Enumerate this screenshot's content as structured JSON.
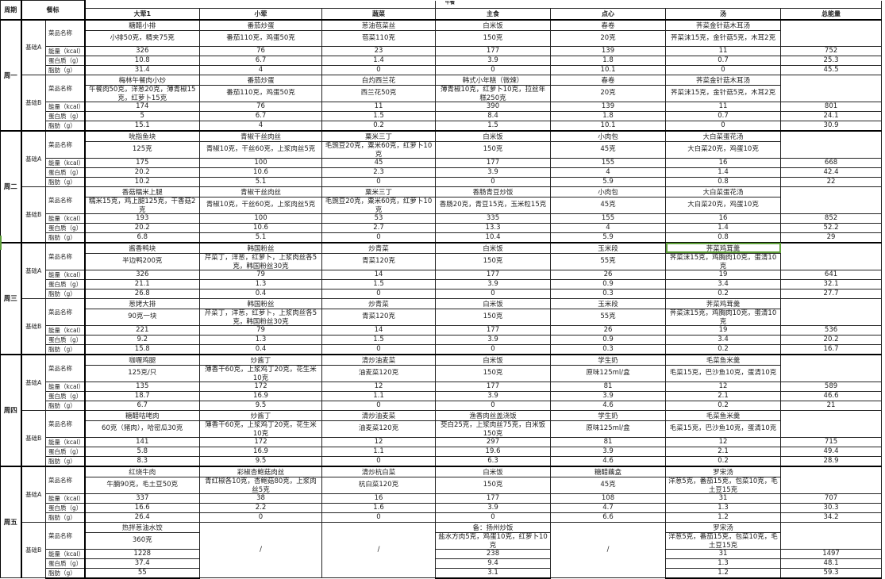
{
  "header": {
    "period": "周期",
    "standard": "餐标",
    "meal": "午餐",
    "columns": [
      "大荤1",
      "小荤",
      "蔬菜",
      "主食",
      "点心",
      "汤",
      "总能量"
    ]
  },
  "row_labels": {
    "name": "菜品名称",
    "kcal": "能量（kcal）",
    "protein": "蛋白质（g）",
    "fat": "脂肪（g）"
  },
  "selection_color": "#5fa03a",
  "selected_cell": "周三-基础A-汤-菜品名称",
  "weeks": [
    {
      "label": "周一",
      "plans": [
        {
          "label": "基础A",
          "dishes": [
            {
              "name": "糖醋小排",
              "detail": "小排50克，精夹75克",
              "kcal": "326",
              "protein": "10.8",
              "fat": "31.4"
            },
            {
              "name": "番茄炒蛋",
              "detail": "番茄110克，鸡蛋50克",
              "kcal": "76",
              "protein": "6.7",
              "fat": "4"
            },
            {
              "name": "葱油苞菜丝",
              "detail": "苞菜110克",
              "kcal": "23",
              "protein": "1.4",
              "fat": "0"
            },
            {
              "name": "白米饭",
              "detail": "150克",
              "kcal": "177",
              "protein": "3.9",
              "fat": "0"
            },
            {
              "name": "春卷",
              "detail": "20克",
              "kcal": "139",
              "protein": "1.8",
              "fat": "10.1"
            },
            {
              "name": "荠菜金针菇木耳汤",
              "detail": "荠菜沫15克，金针菇5克，木耳2克",
              "kcal": "11",
              "protein": "0.7",
              "fat": "0"
            }
          ],
          "total": {
            "kcal": "752",
            "protein": "25.3",
            "fat": "45.5"
          }
        },
        {
          "label": "基础B",
          "dishes": [
            {
              "name": "梅林午餐肉小炒",
              "detail": "午餐肉50克，洋葱20克，薄青椒15克，红萝卜15克",
              "kcal": "174",
              "protein": "5",
              "fat": "15.1"
            },
            {
              "name": "番茄炒蛋",
              "detail": "番茄110克，鸡蛋50克",
              "kcal": "76",
              "protein": "6.7",
              "fat": "4"
            },
            {
              "name": "白灼西兰花",
              "detail": "西兰花50克",
              "kcal": "11",
              "protein": "1.5",
              "fat": "0.2"
            },
            {
              "name": "韩式小年糕（微辣）",
              "detail": "薄青椒10克，红萝卜10克，拉丝年糕250克",
              "kcal": "390",
              "protein": "8.4",
              "fat": "1.5"
            },
            {
              "name": "春卷",
              "detail": "20克",
              "kcal": "139",
              "protein": "1.8",
              "fat": "10.1"
            },
            {
              "name": "荠菜金针菇木耳汤",
              "detail": "荠菜沫15克，金针菇5克，木耳2克",
              "kcal": "11",
              "protein": "0.7",
              "fat": "0"
            }
          ],
          "total": {
            "kcal": "801",
            "protein": "24.1",
            "fat": "30.9"
          }
        }
      ]
    },
    {
      "label": "周二",
      "plans": [
        {
          "label": "基础A",
          "dishes": [
            {
              "name": "吮指鱼块",
              "detail": "125克",
              "kcal": "175",
              "protein": "20.2",
              "fat": "10.2"
            },
            {
              "name": "青椒干丝肉丝",
              "detail": "青椒10克，干丝60克，上浆肉丝5克",
              "kcal": "100",
              "protein": "10.6",
              "fat": "5.1"
            },
            {
              "name": "粟米三丁",
              "detail": "毛豌豆20克，粟米60克，红萝卜10克",
              "kcal": "45",
              "protein": "2.3",
              "fat": "0"
            },
            {
              "name": "白米饭",
              "detail": "150克",
              "kcal": "177",
              "protein": "3.9",
              "fat": "0"
            },
            {
              "name": "小肉包",
              "detail": "45克",
              "kcal": "155",
              "protein": "4",
              "fat": "5.9"
            },
            {
              "name": "大白菜蛋花汤",
              "detail": "大白菜20克，鸡蛋10克",
              "kcal": "16",
              "protein": "1.4",
              "fat": "0.8"
            }
          ],
          "total": {
            "kcal": "668",
            "protein": "42.4",
            "fat": "22"
          }
        },
        {
          "label": "基础B",
          "dishes": [
            {
              "name": "香菇糯米上腿",
              "detail": "糯米15克，鸡上腿125克，干香菇2克",
              "kcal": "193",
              "protein": "20.2",
              "fat": "6.8"
            },
            {
              "name": "青椒干丝肉丝",
              "detail": "青椒10克，干丝60克，上浆肉丝5克",
              "kcal": "100",
              "protein": "10.6",
              "fat": "5.1"
            },
            {
              "name": "粟米三丁",
              "detail": "毛豌豆20克，粟米60克，红萝卜10克",
              "kcal": "53",
              "protein": "2.7",
              "fat": "0"
            },
            {
              "name": "香肠青豆炒饭",
              "detail": "香肠20克，青豆15克，玉米粒15克",
              "kcal": "335",
              "protein": "13.3",
              "fat": "10.4"
            },
            {
              "name": "小肉包",
              "detail": "45克",
              "kcal": "155",
              "protein": "4",
              "fat": "5.9"
            },
            {
              "name": "大白菜蛋花汤",
              "detail": "大白菜20克，鸡蛋10克",
              "kcal": "16",
              "protein": "1.4",
              "fat": "0.8"
            }
          ],
          "total": {
            "kcal": "852",
            "protein": "52.2",
            "fat": "29"
          }
        }
      ]
    },
    {
      "label": "周三",
      "plans": [
        {
          "label": "基础A",
          "dishes": [
            {
              "name": "酱香鸭块",
              "detail": "半边鸭200克",
              "kcal": "326",
              "protein": "21.1",
              "fat": "26.8"
            },
            {
              "name": "韩国粉丝",
              "detail": "芹菜丁，洋葱，红萝卜，上浆肉丝各5克，韩国粉丝30克",
              "kcal": "79",
              "protein": "1.3",
              "fat": "0.4"
            },
            {
              "name": "炒青菜",
              "detail": "青菜120克",
              "kcal": "14",
              "protein": "1.5",
              "fat": "0"
            },
            {
              "name": "白米饭",
              "detail": "150克",
              "kcal": "177",
              "protein": "3.9",
              "fat": "0"
            },
            {
              "name": "玉米段",
              "detail": "55克",
              "kcal": "26",
              "protein": "0.9",
              "fat": "0.3"
            },
            {
              "name": "荠菜鸡茸羹",
              "detail": "荠菜沫15克，鸡胸肉10克，蛋清10克",
              "kcal": "19",
              "protein": "3.4",
              "fat": "0.2"
            }
          ],
          "total": {
            "kcal": "641",
            "protein": "32.1",
            "fat": "27.7"
          }
        },
        {
          "label": "基础B",
          "dishes": [
            {
              "name": "葱烤大排",
              "detail": "90克一块",
              "kcal": "221",
              "protein": "9.2",
              "fat": "15.8"
            },
            {
              "name": "韩国粉丝",
              "detail": "芹菜丁，洋葱，红萝卜，上浆肉丝各5克，韩国粉丝30克",
              "kcal": "79",
              "protein": "1.3",
              "fat": "0.4"
            },
            {
              "name": "炒青菜",
              "detail": "青菜120克",
              "kcal": "14",
              "protein": "1.5",
              "fat": "0"
            },
            {
              "name": "白米饭",
              "detail": "150克",
              "kcal": "177",
              "protein": "3.9",
              "fat": "0"
            },
            {
              "name": "玉米段",
              "detail": "55克",
              "kcal": "26",
              "protein": "0.9",
              "fat": "0.3"
            },
            {
              "name": "荠菜鸡茸羹",
              "detail": "荠菜沫15克，鸡胸肉10克，蛋清10克",
              "kcal": "19",
              "protein": "3.4",
              "fat": "0.2"
            }
          ],
          "total": {
            "kcal": "536",
            "protein": "20.2",
            "fat": "16.7"
          }
        }
      ]
    },
    {
      "label": "周四",
      "plans": [
        {
          "label": "基础A",
          "dishes": [
            {
              "name": "咖喱鸡腿",
              "detail": "125克/只",
              "kcal": "135",
              "protein": "18.7",
              "fat": "6.7"
            },
            {
              "name": "炒酱丁",
              "detail": "薄香干60克，上浆鸡丁20克，花生米10克",
              "kcal": "172",
              "protein": "16.9",
              "fat": "9.5"
            },
            {
              "name": "清炒油麦菜",
              "detail": "油麦菜120克",
              "kcal": "12",
              "protein": "1.1",
              "fat": "0"
            },
            {
              "name": "白米饭",
              "detail": "150克",
              "kcal": "177",
              "protein": "3.9",
              "fat": "0"
            },
            {
              "name": "学生奶",
              "detail": "原味125ml/盒",
              "kcal": "81",
              "protein": "3.9",
              "fat": "4.6"
            },
            {
              "name": "毛菜鱼米羹",
              "detail": "毛菜15克，巴沙鱼10克，蛋清10克",
              "kcal": "12",
              "protein": "2.1",
              "fat": "0.2"
            }
          ],
          "total": {
            "kcal": "589",
            "protein": "46.6",
            "fat": "21"
          }
        },
        {
          "label": "基础B",
          "dishes": [
            {
              "name": "糖醋咕咾肉",
              "detail": "60克（猪肉），哈密瓜30克",
              "kcal": "141",
              "protein": "5.8",
              "fat": "8.3"
            },
            {
              "name": "炒酱丁",
              "detail": "薄香干60克，上浆鸡丁20克，花生米10克",
              "kcal": "172",
              "protein": "16.9",
              "fat": "9.5"
            },
            {
              "name": "清炒油麦菜",
              "detail": "油麦菜120克",
              "kcal": "12",
              "protein": "1.1",
              "fat": "0"
            },
            {
              "name": "渔香肉丝盖浇饭",
              "detail": "茭白25克，上浆肉丝75克，白米饭150克",
              "kcal": "297",
              "protein": "19.6",
              "fat": "6.3"
            },
            {
              "name": "学生奶",
              "detail": "原味125ml/盒",
              "kcal": "81",
              "protein": "3.9",
              "fat": "4.6"
            },
            {
              "name": "毛菜鱼米羹",
              "detail": "毛菜15克，巴沙鱼10克，蛋清10克",
              "kcal": "12",
              "protein": "2.1",
              "fat": "0.2"
            }
          ],
          "total": {
            "kcal": "715",
            "protein": "49.4",
            "fat": "28.9"
          }
        }
      ]
    },
    {
      "label": "周五",
      "plans": [
        {
          "label": "基础A",
          "dishes": [
            {
              "name": "红烧牛肉",
              "detail": "牛腩90克，毛土豆50克",
              "kcal": "337",
              "protein": "16.6",
              "fat": "26.4"
            },
            {
              "name": "彩椒杏鲍菇肉丝",
              "detail": "青红椒各10克，杏鲍菇80克，上浆肉丝5克",
              "kcal": "38",
              "protein": "2.2",
              "fat": "0"
            },
            {
              "name": "清炒杭白菜",
              "detail": "杭白菜120克",
              "kcal": "16",
              "protein": "1.6",
              "fat": "0"
            },
            {
              "name": "白米饭",
              "detail": "150克",
              "kcal": "177",
              "protein": "3.9",
              "fat": "0"
            },
            {
              "name": "糖醋藕盒",
              "detail": "45克",
              "kcal": "108",
              "protein": "4.7",
              "fat": "6.6"
            },
            {
              "name": "罗宋汤",
              "detail": "洋葱5克，番茄15克，包菜10克，毛土豆15克",
              "kcal": "31",
              "protein": "1.3",
              "fat": "1.2"
            }
          ],
          "total": {
            "kcal": "707",
            "protein": "30.3",
            "fat": "34.2"
          }
        },
        {
          "label": "基础B",
          "dishes": [
            {
              "name": "热拌葱油水饺",
              "detail": "360克",
              "kcal": "1228",
              "protein": "37.4",
              "fat": "55"
            },
            {
              "slash": "/"
            },
            {
              "slash": "/"
            },
            {
              "name": "备：扬州炒饭",
              "detail": "盐水方肉5克，鸡蛋10克，红萝卜10克",
              "kcal": "238",
              "protein": "9.4",
              "fat": "3.1"
            },
            {
              "slash": "/"
            },
            {
              "name": "罗宋汤",
              "detail": "洋葱5克，番茄15克，包菜10克，毛土豆15克",
              "kcal": "31",
              "protein": "1.3",
              "fat": "1.2"
            }
          ],
          "total": {
            "kcal": "1497",
            "protein": "48.1",
            "fat": "59.3"
          }
        }
      ]
    }
  ]
}
